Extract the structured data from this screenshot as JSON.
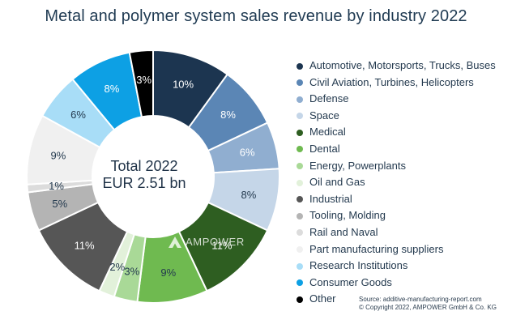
{
  "title": "Metal and polymer system sales revenue by industry 2022",
  "center": {
    "line1": "Total 2022",
    "line2": "EUR 2.51 bn"
  },
  "watermark": {
    "brand": "AMPOWER",
    "icon": "ampower-logo-icon"
  },
  "source": {
    "line1": "Source: additive-manufacturing-report.com",
    "line2": "© Copyright 2022, AMPOWER GmbH & Co. KG"
  },
  "chart_data": {
    "type": "pie",
    "subtype": "donut",
    "title": "Metal and polymer system sales revenue by industry 2022",
    "center_label": "Total 2022 EUR 2.51 bn",
    "legend_position": "right",
    "start": "top, clockwise",
    "categories": [
      "Automotive, Motorsports, Trucks, Buses",
      "Civil Aviation, Turbines, Helicopters",
      "Defense",
      "Space",
      "Medical",
      "Dental",
      "Energy, Powerplants",
      "Oil and Gas",
      "Industrial",
      "Tooling, Molding",
      "Rail and Naval",
      "Part manufacturing suppliers",
      "Research Institutions",
      "Consumer Goods",
      "Other"
    ],
    "values": [
      10,
      8,
      6,
      8,
      11,
      9,
      3,
      2,
      11,
      5,
      1,
      9,
      6,
      8,
      3
    ],
    "labels": [
      "10%",
      "8%",
      "6%",
      "8%",
      "11%",
      "9%",
      "3%",
      "2%",
      "11%",
      "5%",
      "1%",
      "9%",
      "6%",
      "8%",
      "3%"
    ],
    "colors": [
      "#1c3550",
      "#5b86b5",
      "#90aed0",
      "#c5d6e8",
      "#2e5e21",
      "#6fba50",
      "#a9d997",
      "#e2f1da",
      "#565656",
      "#b4b4b4",
      "#dcdcdc",
      "#f0f0f0",
      "#a8ddf7",
      "#0da0e4",
      "#000000"
    ],
    "label_colors": [
      "#ffffff",
      "#ffffff",
      "#ffffff",
      "#243a4f",
      "#ffffff",
      "#243a4f",
      "#243a4f",
      "#243a4f",
      "#ffffff",
      "#243a4f",
      "#243a4f",
      "#243a4f",
      "#243a4f",
      "#ffffff",
      "#ffffff"
    ]
  }
}
